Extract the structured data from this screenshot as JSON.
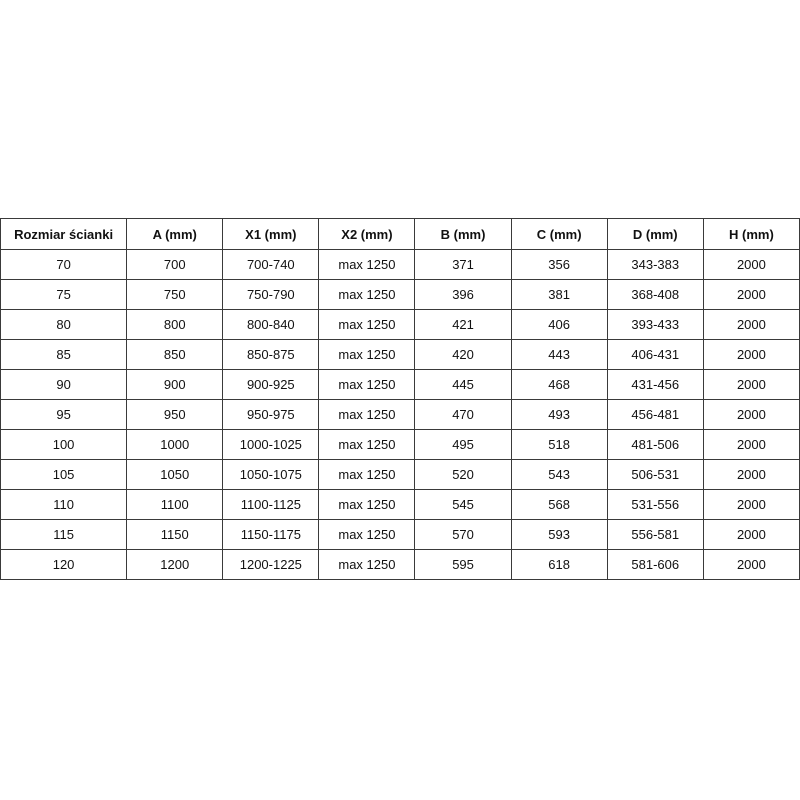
{
  "table": {
    "headers": [
      "Rozmiar ścianki",
      "A (mm)",
      "X1 (mm)",
      "X2 (mm)",
      "B (mm)",
      "C (mm)",
      "D (mm)",
      "H (mm)"
    ],
    "rows": [
      [
        "70",
        "700",
        "700-740",
        "max 1250",
        "371",
        "356",
        "343-383",
        "2000"
      ],
      [
        "75",
        "750",
        "750-790",
        "max 1250",
        "396",
        "381",
        "368-408",
        "2000"
      ],
      [
        "80",
        "800",
        "800-840",
        "max 1250",
        "421",
        "406",
        "393-433",
        "2000"
      ],
      [
        "85",
        "850",
        "850-875",
        "max 1250",
        "420",
        "443",
        "406-431",
        "2000"
      ],
      [
        "90",
        "900",
        "900-925",
        "max 1250",
        "445",
        "468",
        "431-456",
        "2000"
      ],
      [
        "95",
        "950",
        "950-975",
        "max 1250",
        "470",
        "493",
        "456-481",
        "2000"
      ],
      [
        "100",
        "1000",
        "1000-1025",
        "max 1250",
        "495",
        "518",
        "481-506",
        "2000"
      ],
      [
        "105",
        "1050",
        "1050-1075",
        "max 1250",
        "520",
        "543",
        "506-531",
        "2000"
      ],
      [
        "110",
        "1100",
        "1100-1125",
        "max 1250",
        "545",
        "568",
        "531-556",
        "2000"
      ],
      [
        "115",
        "1150",
        "1150-1175",
        "max 1250",
        "570",
        "593",
        "556-581",
        "2000"
      ],
      [
        "120",
        "1200",
        "1200-1225",
        "max 1250",
        "595",
        "618",
        "581-606",
        "2000"
      ]
    ]
  }
}
